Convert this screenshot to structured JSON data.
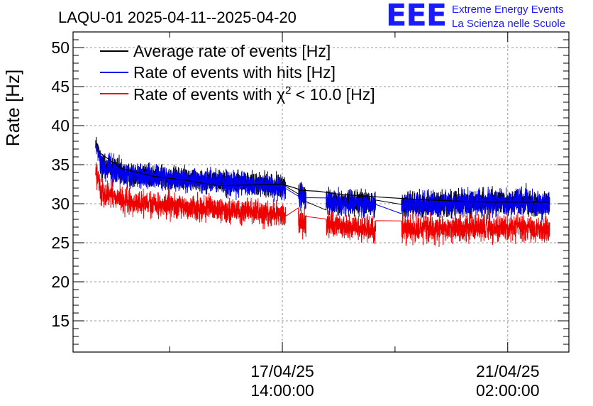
{
  "title": "LAQU-01 2025-04-11--2025-04-20",
  "logo": {
    "mark": "EEE",
    "line1": "Extreme Energy Events",
    "line2": "La Scienza nelle Scuole",
    "color": "#1a1aff"
  },
  "chart_data": {
    "type": "line",
    "ylabel": "Rate [Hz]",
    "xlabel": "",
    "ylim": [
      11,
      52
    ],
    "yticks": [
      15,
      20,
      25,
      30,
      35,
      40,
      45,
      50
    ],
    "x_unit": "days (0 = 17/04/25 14:00:00)",
    "xlim": [
      -3.25,
      4.45
    ],
    "xticks": [
      {
        "x": 0,
        "date": "17/04/25",
        "time": "14:00:00"
      },
      {
        "x": 3.5,
        "date": "21/04/25",
        "time": "02:00:00"
      }
    ],
    "grid": true,
    "legend_position": "top-left",
    "series": [
      {
        "name": "Average rate of events [Hz]",
        "color": "#000000",
        "points": [
          [
            -2.9,
            38
          ],
          [
            -2.83,
            36.5
          ],
          [
            -2.5,
            34.5
          ],
          [
            -2.0,
            33.5
          ],
          [
            -1.5,
            33
          ],
          [
            -1.0,
            32.3
          ],
          [
            0.0,
            32.5
          ],
          [
            0.2,
            32
          ],
          [
            0.3,
            31.7
          ],
          [
            0.55,
            31.6
          ],
          [
            0.9,
            31.2
          ],
          [
            1.6,
            30.8
          ],
          [
            2.2,
            30.5
          ],
          [
            3.2,
            30.2
          ],
          [
            4.15,
            30.2
          ]
        ],
        "segments": [
          {
            "x0": -2.9,
            "x1": -2.83,
            "y0": 38.0,
            "y1": 36.0,
            "amp": 1.0
          },
          {
            "x0": -2.83,
            "x1": -2.48,
            "y0": 35.2,
            "y1": 34.0,
            "amp": 1.6
          },
          {
            "x0": -2.48,
            "x1": 0.05,
            "y0": 33.8,
            "y1": 32.3,
            "amp": 1.4
          },
          {
            "x0": 0.25,
            "x1": 0.37,
            "y0": 31.3,
            "y1": 30.7,
            "amp": 1.6
          },
          {
            "x0": 0.68,
            "x1": 1.45,
            "y0": 30.3,
            "y1": 30.0,
            "amp": 1.5
          },
          {
            "x0": 1.85,
            "x1": 3.8,
            "y0": 29.9,
            "y1": 30.3,
            "amp": 1.6
          },
          {
            "x0": 3.8,
            "x1": 4.15,
            "y0": 30.1,
            "y1": 29.9,
            "amp": 1.5
          }
        ]
      },
      {
        "name": "Rate of events with hits [Hz]",
        "color": "#0000ee",
        "segments": [
          {
            "x0": -2.9,
            "x1": -2.83,
            "y0": 37.5,
            "y1": 35.8,
            "amp": 1.0
          },
          {
            "x0": -2.83,
            "x1": -2.48,
            "y0": 35.0,
            "y1": 33.8,
            "amp": 1.6
          },
          {
            "x0": -2.48,
            "x1": 0.05,
            "y0": 33.6,
            "y1": 32.1,
            "amp": 1.4
          },
          {
            "x0": 0.25,
            "x1": 0.37,
            "y0": 31.0,
            "y1": 30.5,
            "amp": 1.6
          },
          {
            "x0": 0.68,
            "x1": 1.45,
            "y0": 30.2,
            "y1": 29.9,
            "amp": 1.5
          },
          {
            "x0": 1.85,
            "x1": 3.8,
            "y0": 29.8,
            "y1": 30.2,
            "amp": 1.6
          },
          {
            "x0": 3.8,
            "x1": 4.15,
            "y0": 30.0,
            "y1": 29.8,
            "amp": 1.5
          }
        ]
      },
      {
        "name": "Rate of events with χ² < 10.0 [Hz]",
        "legend_prefix": "Rate of events with ",
        "legend_chi": "χ",
        "legend_sup": "2",
        "legend_suffix": " < 10.0 [Hz]",
        "color": "#ee0000",
        "segments": [
          {
            "x0": -2.9,
            "x1": -2.83,
            "y0": 34.0,
            "y1": 32.5,
            "amp": 1.4
          },
          {
            "x0": -2.83,
            "x1": -2.48,
            "y0": 31.5,
            "y1": 30.5,
            "amp": 1.7
          },
          {
            "x0": -2.48,
            "x1": 0.05,
            "y0": 30.2,
            "y1": 28.6,
            "amp": 1.5
          },
          {
            "x0": 0.25,
            "x1": 0.37,
            "y0": 27.8,
            "y1": 27.3,
            "amp": 1.7
          },
          {
            "x0": 0.68,
            "x1": 1.45,
            "y0": 27.3,
            "y1": 26.7,
            "amp": 1.6
          },
          {
            "x0": 1.85,
            "x1": 3.8,
            "y0": 26.7,
            "y1": 27.0,
            "amp": 1.7
          },
          {
            "x0": 3.8,
            "x1": 4.15,
            "y0": 26.8,
            "y1": 26.6,
            "amp": 1.6
          }
        ]
      }
    ]
  }
}
